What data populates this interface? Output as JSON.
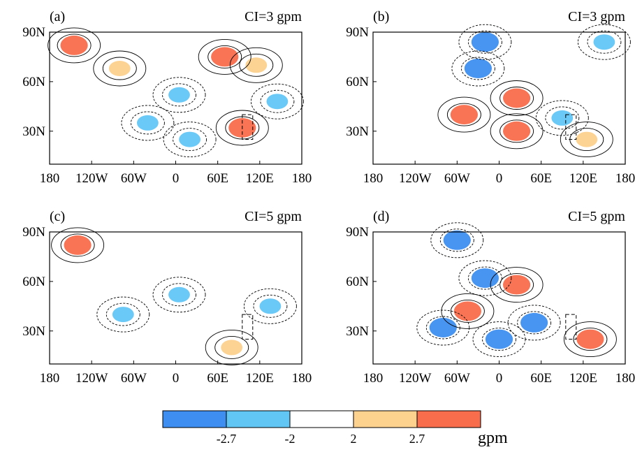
{
  "chart_data": [
    {
      "type": "heatmap",
      "panel_label": "(a)",
      "contour_interval_label": "CI=3 gpm",
      "x_ticks": [
        "180",
        "120W",
        "60W",
        "0",
        "60E",
        "120E",
        "180"
      ],
      "y_ticks": [
        "90N",
        "60N",
        "30N"
      ],
      "xlim": [
        -180,
        180
      ],
      "ylim": [
        10,
        90
      ],
      "anomalies": [
        {
          "lon": -145,
          "lat": 82,
          "value": 2.7
        },
        {
          "lon": 70,
          "lat": 75,
          "value": 2.7
        },
        {
          "lon": 115,
          "lat": 70,
          "value": 2.0
        },
        {
          "lon": -80,
          "lat": 68,
          "value": 2.0
        },
        {
          "lon": 5,
          "lat": 52,
          "value": -2.0
        },
        {
          "lon": 145,
          "lat": 48,
          "value": -2.0
        },
        {
          "lon": 95,
          "lat": 32,
          "value": 2.7
        },
        {
          "lon": -40,
          "lat": 35,
          "value": -2.0
        },
        {
          "lon": 20,
          "lat": 25,
          "value": -2.0
        }
      ],
      "region_box": {
        "lon": [
          95,
          110
        ],
        "lat": [
          25,
          40
        ]
      }
    },
    {
      "type": "heatmap",
      "panel_label": "(b)",
      "contour_interval_label": "CI=3 gpm",
      "x_ticks": [
        "180",
        "120W",
        "60W",
        "0",
        "60E",
        "120E",
        "180"
      ],
      "y_ticks": [
        "90N",
        "60N",
        "30N"
      ],
      "xlim": [
        -180,
        180
      ],
      "ylim": [
        10,
        90
      ],
      "anomalies": [
        {
          "lon": -20,
          "lat": 84,
          "value": -2.7
        },
        {
          "lon": 150,
          "lat": 84,
          "value": -2.0
        },
        {
          "lon": -30,
          "lat": 68,
          "value": -2.7
        },
        {
          "lon": -50,
          "lat": 40,
          "value": 2.7
        },
        {
          "lon": 25,
          "lat": 50,
          "value": 2.7
        },
        {
          "lon": 25,
          "lat": 30,
          "value": 2.7
        },
        {
          "lon": 90,
          "lat": 38,
          "value": -2.0
        },
        {
          "lon": 125,
          "lat": 25,
          "value": 2.0
        }
      ],
      "region_box": {
        "lon": [
          95,
          110
        ],
        "lat": [
          25,
          40
        ]
      }
    },
    {
      "type": "heatmap",
      "panel_label": "(c)",
      "contour_interval_label": "CI=5 gpm",
      "x_ticks": [
        "180",
        "120W",
        "60W",
        "0",
        "60E",
        "120E",
        "180"
      ],
      "y_ticks": [
        "90N",
        "60N",
        "30N"
      ],
      "xlim": [
        -180,
        180
      ],
      "ylim": [
        10,
        90
      ],
      "anomalies": [
        {
          "lon": -140,
          "lat": 82,
          "value": 2.7
        },
        {
          "lon": 5,
          "lat": 52,
          "value": -2.0
        },
        {
          "lon": 135,
          "lat": 45,
          "value": -2.0
        },
        {
          "lon": -75,
          "lat": 40,
          "value": -2.0
        },
        {
          "lon": 80,
          "lat": 20,
          "value": 2.0
        }
      ],
      "region_box": {
        "lon": [
          95,
          110
        ],
        "lat": [
          25,
          40
        ]
      }
    },
    {
      "type": "heatmap",
      "panel_label": "(d)",
      "contour_interval_label": "CI=5 gpm",
      "x_ticks": [
        "180",
        "120W",
        "60W",
        "0",
        "60E",
        "120E",
        "180"
      ],
      "y_ticks": [
        "90N",
        "60N",
        "30N"
      ],
      "xlim": [
        -180,
        180
      ],
      "ylim": [
        10,
        90
      ],
      "anomalies": [
        {
          "lon": -60,
          "lat": 85,
          "value": -2.7
        },
        {
          "lon": -20,
          "lat": 62,
          "value": -2.7
        },
        {
          "lon": 25,
          "lat": 58,
          "value": 2.7
        },
        {
          "lon": -45,
          "lat": 42,
          "value": 2.7
        },
        {
          "lon": 50,
          "lat": 35,
          "value": -2.7
        },
        {
          "lon": -80,
          "lat": 32,
          "value": -2.7
        },
        {
          "lon": 130,
          "lat": 25,
          "value": 2.7
        },
        {
          "lon": 0,
          "lat": 25,
          "value": -2.7
        }
      ],
      "region_box": {
        "lon": [
          95,
          110
        ],
        "lat": [
          25,
          40
        ]
      }
    }
  ],
  "colorbar": {
    "tick_labels": [
      "-2.7",
      "-2",
      "2",
      "2.7"
    ],
    "unit": "gpm",
    "colors": [
      "#3d8ef0",
      "#62c6f5",
      "#ffffff",
      "#fdd18e",
      "#f86d4c"
    ]
  },
  "palette": {
    "strong_negative": "#3d8ef0",
    "negative": "#62c6f5",
    "positive": "#fdd18e",
    "strong_positive": "#f86d4c"
  }
}
